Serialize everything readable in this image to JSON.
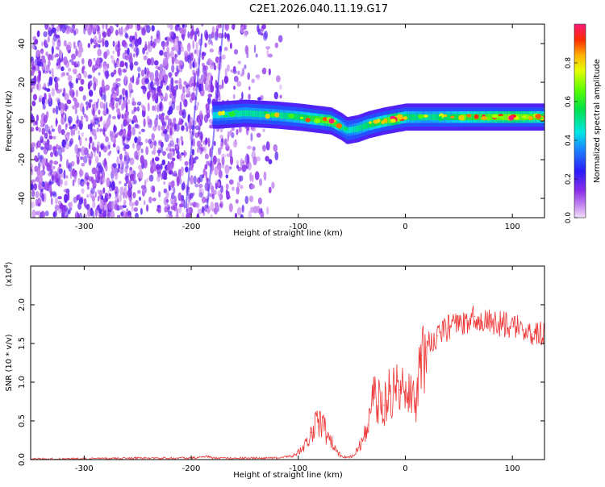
{
  "title": "C2E1.2026.040.11.19.G17",
  "chart_data": [
    {
      "type": "heatmap",
      "title": "C2E1.2026.040.11.19.G17",
      "xlabel": "Height of straight line (km)",
      "ylabel": "Frequency (Hz)",
      "xlim": [
        -350,
        130
      ],
      "ylim": [
        -50,
        50
      ],
      "xticks": [
        -300,
        -200,
        -100,
        0,
        100
      ],
      "yticks": [
        -40,
        -20,
        0,
        20,
        40
      ],
      "ridge": {
        "description": "Frequency of peak spectral amplitude vs height",
        "x": [
          -175,
          -150,
          -120,
          -100,
          -85,
          -70,
          -60,
          -55,
          -45,
          -35,
          -20,
          -10,
          0,
          20,
          60,
          100,
          130
        ],
        "y": [
          3,
          4,
          3,
          2,
          1,
          0,
          -3,
          -5,
          -4,
          -2,
          0,
          1,
          2,
          2,
          2,
          2,
          2
        ],
        "amplitude": [
          0.45,
          0.5,
          0.5,
          0.55,
          0.6,
          0.7,
          0.5,
          0.45,
          0.5,
          0.55,
          0.6,
          0.75,
          0.55,
          0.5,
          0.6,
          0.7,
          0.6
        ]
      },
      "colorbar": {
        "label": "Normalized spectral amplitude",
        "ticks": [
          "0.0",
          "0.2",
          "0.4",
          "0.6",
          "0.8"
        ],
        "range": [
          0,
          1
        ]
      }
    },
    {
      "type": "line",
      "xlabel": "Height of straight line (km)",
      "ylabel": "SNR (10 * v/v)",
      "scale_label": "(x10",
      "scale_exp": "4",
      "scale_close": ")",
      "xlim": [
        -350,
        130
      ],
      "ylim": [
        0,
        2.5
      ],
      "xticks": [
        -300,
        -200,
        -100,
        0,
        100
      ],
      "yticks": [
        "0.0",
        "0.5",
        "1.0",
        "1.5",
        "2.0"
      ],
      "color": "#ee3333",
      "series": [
        {
          "name": "SNR",
          "x": [
            -350,
            -300,
            -250,
            -200,
            -185,
            -180,
            -150,
            -120,
            -105,
            -95,
            -88,
            -82,
            -78,
            -70,
            -65,
            -60,
            -55,
            -50,
            -45,
            -40,
            -35,
            -30,
            -25,
            -20,
            -15,
            -10,
            -5,
            0,
            5,
            10,
            15,
            20,
            30,
            40,
            50,
            60,
            65,
            70,
            80,
            90,
            100,
            110,
            120,
            130
          ],
          "y": [
            0.01,
            0.01,
            0.02,
            0.02,
            0.04,
            0.02,
            0.02,
            0.02,
            0.05,
            0.15,
            0.35,
            0.5,
            0.45,
            0.25,
            0.12,
            0.05,
            0.03,
            0.04,
            0.12,
            0.25,
            0.45,
            0.8,
            0.75,
            0.7,
            0.85,
            0.95,
            0.9,
            0.9,
            1.0,
            0.65,
            1.35,
            1.45,
            1.6,
            1.7,
            1.75,
            1.75,
            1.85,
            1.8,
            1.78,
            1.75,
            1.72,
            1.68,
            1.65,
            1.6
          ]
        }
      ]
    }
  ]
}
